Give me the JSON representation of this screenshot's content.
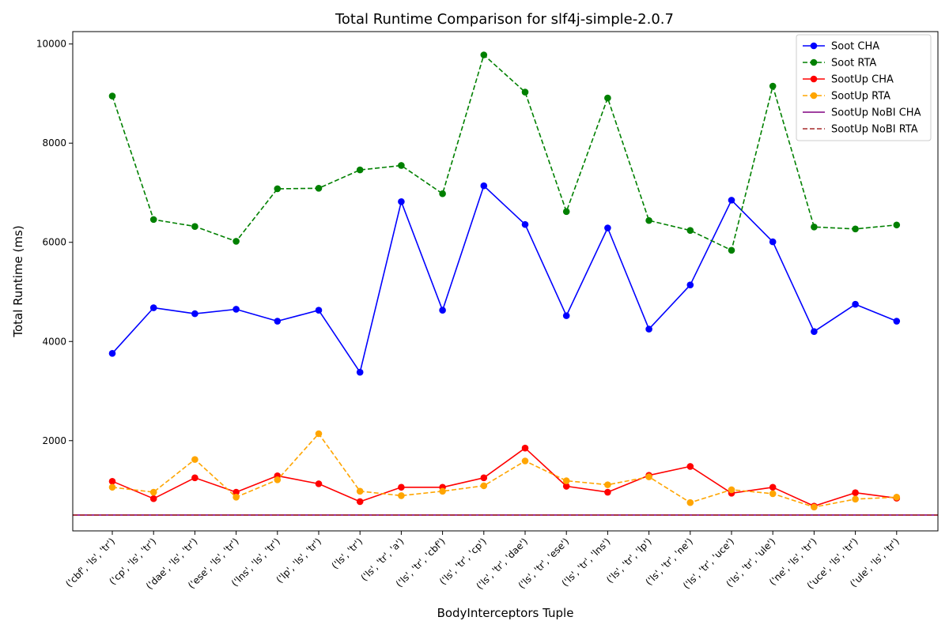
{
  "chart_data": {
    "type": "line",
    "title": "Total Runtime Comparison for slf4j-simple-2.0.7",
    "xlabel": "BodyInterceptors Tuple",
    "ylabel": "Total Runtime (ms)",
    "ylim": [
      180,
      10250
    ],
    "yticks": [
      2000,
      4000,
      6000,
      8000,
      10000
    ],
    "grid": false,
    "legend_position": "top-right",
    "categories": [
      "('cbf', 'ls', 'tr')",
      "('cp', 'ls', 'tr')",
      "('dae', 'ls', 'tr')",
      "('ese', 'ls', 'tr')",
      "('lns', 'ls', 'tr')",
      "('lp', 'ls', 'tr')",
      "('ls', 'tr')",
      "('ls', 'tr', 'a')",
      "('ls', 'tr', 'cbf')",
      "('ls', 'tr', 'cp')",
      "('ls', 'tr', 'dae')",
      "('ls', 'tr', 'ese')",
      "('ls', 'tr', 'lns')",
      "('ls', 'tr', 'lp')",
      "('ls', 'tr', 'ne')",
      "('ls', 'tr', 'uce')",
      "('ls', 'tr', 'ule')",
      "('ne', 'ls', 'tr')",
      "('uce', 'ls', 'tr')",
      "('ule', 'ls', 'tr')"
    ],
    "series": [
      {
        "name": "Soot CHA",
        "color": "#0000ff",
        "dashed": false,
        "markers": true,
        "values": [
          3760,
          4680,
          4560,
          4650,
          4410,
          4630,
          3380,
          6820,
          4630,
          7140,
          6360,
          4520,
          6290,
          4250,
          5140,
          6850,
          6010,
          4200,
          4750,
          4410
        ]
      },
      {
        "name": "Soot RTA",
        "color": "#008000",
        "dashed": true,
        "markers": true,
        "values": [
          8950,
          6460,
          6320,
          6020,
          7080,
          7090,
          7460,
          7550,
          6980,
          9780,
          9030,
          6620,
          8910,
          6440,
          6240,
          5840,
          9150,
          6310,
          6270,
          6350
        ]
      },
      {
        "name": "SootUp CHA",
        "color": "#ff0000",
        "dashed": false,
        "markers": true,
        "values": [
          1180,
          830,
          1250,
          960,
          1290,
          1130,
          770,
          1060,
          1060,
          1250,
          1850,
          1080,
          960,
          1300,
          1480,
          940,
          1060,
          680,
          950,
          840
        ]
      },
      {
        "name": "SootUp RTA",
        "color": "#ffa500",
        "dashed": true,
        "markers": true,
        "values": [
          1060,
          960,
          1620,
          860,
          1210,
          2140,
          980,
          890,
          980,
          1090,
          1590,
          1190,
          1110,
          1270,
          750,
          1010,
          930,
          660,
          820,
          860
        ]
      },
      {
        "name": "SootUp NoBI CHA",
        "color": "#800080",
        "dashed": false,
        "markers": false,
        "constant": 500
      },
      {
        "name": "SootUp NoBI RTA",
        "color": "#a52a2a",
        "dashed": true,
        "markers": false,
        "constant": 500
      }
    ]
  }
}
